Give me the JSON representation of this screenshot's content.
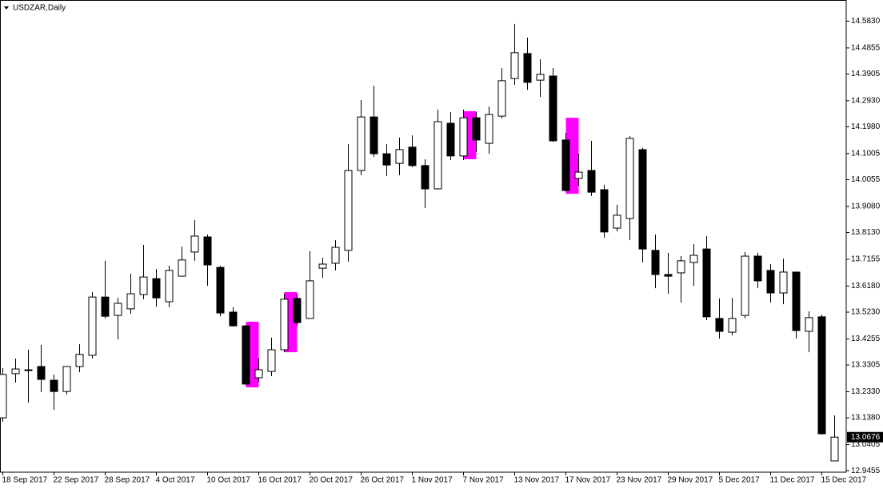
{
  "chart_data": {
    "type": "candlestick",
    "title": "USDZAR,Daily",
    "categories": [
      "18 Sep 2017",
      null,
      null,
      null,
      "22 Sep 2017",
      null,
      null,
      null,
      "28 Sep 2017",
      null,
      null,
      null,
      "4 Oct 2017",
      null,
      null,
      null,
      "10 Oct 2017",
      null,
      null,
      null,
      "16 Oct 2017",
      null,
      null,
      null,
      "20 Oct 2017",
      null,
      null,
      null,
      "26 Oct 2017",
      null,
      null,
      null,
      "1 Nov 2017",
      null,
      null,
      null,
      "7 Nov 2017",
      null,
      null,
      null,
      "13 Nov 2017",
      null,
      null,
      null,
      "17 Nov 2017",
      null,
      null,
      null,
      "23 Nov 2017",
      null,
      null,
      null,
      "29 Nov 2017",
      null,
      null,
      null,
      "5 Dec 2017",
      null,
      null,
      null,
      "11 Dec 2017",
      null,
      null,
      null,
      "15 Dec 2017",
      null
    ],
    "open": [
      13.138,
      13.299,
      13.313,
      13.325,
      13.275,
      13.234,
      13.325,
      13.366,
      13.578,
      13.511,
      13.535,
      13.587,
      13.645,
      13.561,
      13.654,
      13.742,
      13.797,
      13.686,
      13.523,
      13.473,
      13.284,
      13.307,
      13.386,
      13.573,
      13.5,
      13.683,
      13.701,
      13.748,
      14.039,
      14.234,
      14.1,
      14.065,
      14.124,
      14.057,
      13.972,
      14.211,
      14.092,
      14.231,
      14.138,
      14.237,
      14.374,
      14.465,
      14.368,
      14.383,
      14.15,
      14.01,
      14.039,
      13.969,
      13.829,
      13.864,
      14.115,
      13.748,
      13.66,
      13.666,
      13.704,
      13.753,
      13.5,
      13.45,
      13.511,
      13.727,
      13.675,
      13.593,
      13.669,
      13.453,
      13.506,
      12.981
    ],
    "high": [
      13.319,
      13.354,
      13.386,
      13.404,
      13.296,
      13.325,
      13.406,
      13.596,
      13.71,
      13.575,
      13.663,
      13.768,
      13.68,
      13.692,
      13.762,
      13.858,
      13.806,
      13.692,
      13.541,
      13.476,
      13.354,
      13.43,
      13.59,
      13.59,
      13.745,
      13.721,
      13.785,
      14.135,
      14.296,
      14.348,
      14.135,
      14.159,
      14.167,
      14.08,
      14.261,
      14.252,
      14.261,
      14.252,
      14.272,
      14.412,
      14.573,
      14.523,
      14.444,
      14.412,
      14.176,
      14.1,
      14.147,
      13.987,
      13.914,
      14.164,
      14.121,
      13.806,
      13.739,
      13.727,
      13.771,
      13.8,
      13.573,
      13.575,
      13.742,
      13.739,
      13.698,
      13.718,
      13.669,
      13.526,
      13.514,
      13.147
    ],
    "low": [
      13.124,
      13.266,
      13.194,
      13.232,
      13.167,
      13.223,
      13.304,
      13.354,
      13.5,
      13.424,
      13.517,
      13.57,
      13.543,
      13.541,
      13.654,
      13.71,
      13.619,
      13.508,
      13.471,
      13.258,
      13.269,
      13.29,
      13.377,
      13.473,
      13.5,
      13.648,
      13.675,
      13.707,
      14.022,
      14.089,
      14.019,
      14.022,
      14.051,
      13.902,
      13.969,
      14.077,
      14.077,
      14.106,
      14.1,
      14.229,
      14.351,
      14.333,
      14.307,
      14.144,
      13.963,
      13.984,
      13.946,
      13.794,
      13.817,
      13.785,
      13.704,
      13.61,
      13.59,
      13.558,
      13.619,
      13.494,
      13.427,
      13.438,
      13.5,
      13.61,
      13.558,
      13.552,
      13.427,
      13.377,
      13.077,
      12.981
    ],
    "close": [
      13.296,
      13.316,
      13.313,
      13.278,
      13.234,
      13.325,
      13.369,
      13.578,
      13.508,
      13.555,
      13.59,
      13.651,
      13.575,
      13.675,
      13.713,
      13.8,
      13.695,
      13.52,
      13.473,
      13.261,
      13.313,
      13.386,
      13.57,
      13.485,
      13.637,
      13.698,
      13.759,
      14.039,
      14.234,
      14.1,
      14.059,
      14.115,
      14.057,
      13.972,
      14.217,
      14.092,
      14.231,
      14.15,
      14.243,
      14.366,
      14.468,
      14.36,
      14.389,
      14.147,
      13.966,
      14.033,
      13.96,
      13.815,
      13.876,
      14.156,
      13.753,
      13.66,
      13.654,
      13.71,
      13.73,
      13.506,
      13.453,
      13.5,
      13.727,
      13.637,
      13.593,
      13.669,
      13.456,
      13.503,
      13.08,
      13.0676
    ],
    "up_color": "#ffffff",
    "down_color": "#000000",
    "wick_color": "#000000",
    "highlights": [
      {
        "start_index": 19,
        "end_index": 20,
        "high": 13.488,
        "low": 13.249
      },
      {
        "start_index": 22,
        "end_index": 23,
        "high": 13.596,
        "low": 13.377
      },
      {
        "start_index": 36,
        "end_index": 37,
        "high": 14.255,
        "low": 14.08
      },
      {
        "start_index": 44,
        "end_index": 45,
        "high": 14.231,
        "low": 13.954
      }
    ],
    "highlight_color": "#ff00ff",
    "last_price": {
      "value": 13.0676,
      "label": "13.0676"
    },
    "ylim": [
      12.94,
      14.66
    ],
    "yticks": [
      {
        "value": 14.583,
        "label": "14.5830"
      },
      {
        "value": 14.4855,
        "label": "14.4855"
      },
      {
        "value": 14.3905,
        "label": "14.3905"
      },
      {
        "value": 14.293,
        "label": "14.2930"
      },
      {
        "value": 14.198,
        "label": "14.1980"
      },
      {
        "value": 14.1005,
        "label": "14.1005"
      },
      {
        "value": 14.0055,
        "label": "14.0055"
      },
      {
        "value": 13.908,
        "label": "13.9080"
      },
      {
        "value": 13.813,
        "label": "13.8130"
      },
      {
        "value": 13.7155,
        "label": "13.7155"
      },
      {
        "value": 13.618,
        "label": "13.6180"
      },
      {
        "value": 13.523,
        "label": "13.5230"
      },
      {
        "value": 13.4255,
        "label": "13.4255"
      },
      {
        "value": 13.3305,
        "label": "13.3305"
      },
      {
        "value": 13.233,
        "label": "13.2330"
      },
      {
        "value": 13.138,
        "label": "13.1380"
      },
      {
        "value": 13.0405,
        "label": "13.0405"
      },
      {
        "value": 12.9455,
        "label": "12.9455"
      }
    ],
    "grid": false
  }
}
